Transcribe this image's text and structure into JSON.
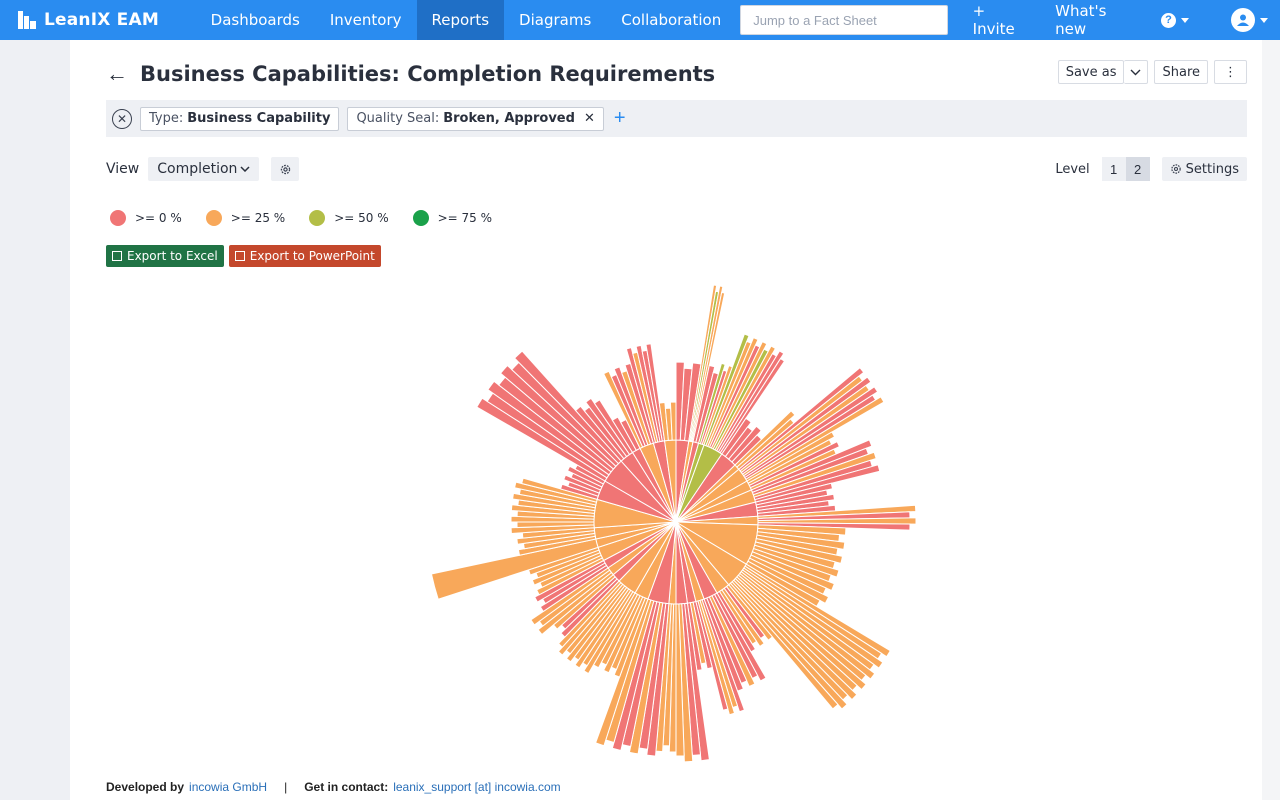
{
  "app": {
    "name": "LeanIX EAM"
  },
  "nav": {
    "items": [
      {
        "label": "Dashboards",
        "active": false
      },
      {
        "label": "Inventory",
        "active": false
      },
      {
        "label": "Reports",
        "active": true
      },
      {
        "label": "Diagrams",
        "active": false
      },
      {
        "label": "Collaboration",
        "active": false
      }
    ],
    "search_placeholder": "Jump to a Fact Sheet",
    "invite_label": "+ Invite",
    "whats_new_label": "What's new"
  },
  "page": {
    "title": "Business Capabilities: Completion Requirements",
    "save_as_label": "Save as",
    "share_label": "Share"
  },
  "filters": [
    {
      "key": "Type:",
      "value": "Business Capability",
      "removable": false
    },
    {
      "key": "Quality Seal:",
      "value": "Broken, Approved",
      "removable": true
    }
  ],
  "view": {
    "label": "View",
    "selected": "Completion"
  },
  "level": {
    "label": "Level",
    "options": [
      "1",
      "2"
    ],
    "selected": "2"
  },
  "settings_label": "Settings",
  "legend": [
    {
      "label": ">= 0 %",
      "color": "#f07575"
    },
    {
      "label": ">= 25 %",
      "color": "#f8a85a"
    },
    {
      "label": ">= 50 %",
      "color": "#b3be47"
    },
    {
      "label": ">= 75 %",
      "color": "#1aa14a"
    }
  ],
  "exports": {
    "excel_label": "Export to Excel",
    "ppt_label": "Export to PowerPoint"
  },
  "footer": {
    "developed_by": "Developed by",
    "company": "incowia GmbH",
    "separator": "|",
    "contact_label": "Get in contact:",
    "contact": "leanix_support [at] incowia.com"
  },
  "chart_data": {
    "type": "sunburst",
    "legend": [
      ">= 0 %",
      ">= 25 %",
      ">= 50 %",
      ">= 75 %"
    ],
    "levels": 2
  }
}
